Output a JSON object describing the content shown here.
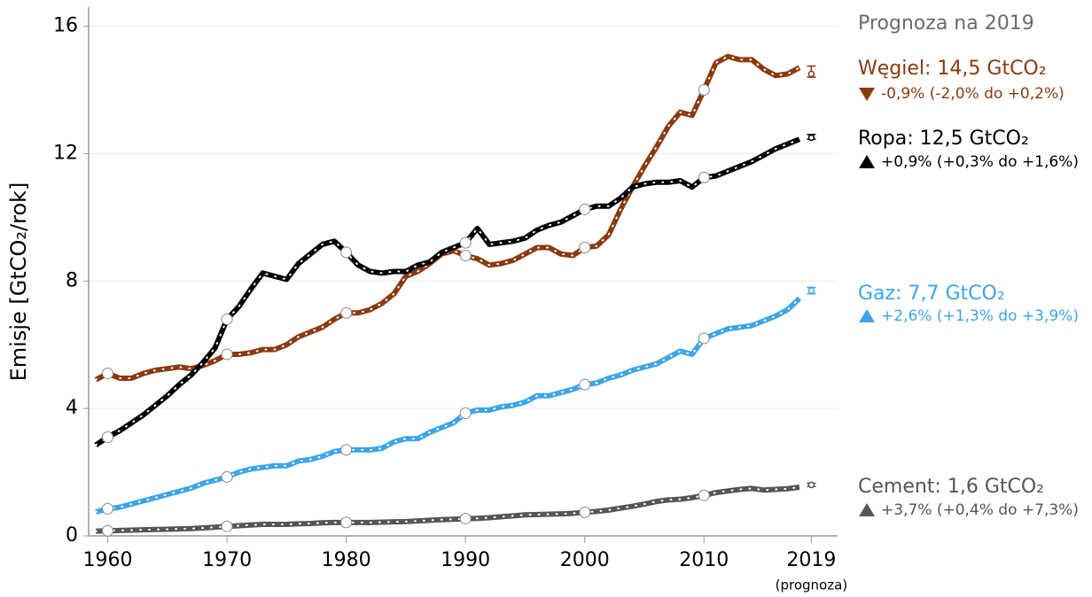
{
  "chart_data": {
    "type": "line",
    "ylabel": "Emisje [GtCO₂/rok]",
    "legend_title": "Prognoza na 2019",
    "x_note": "(prognoza)",
    "x": [
      1959,
      1960,
      1961,
      1962,
      1963,
      1964,
      1965,
      1966,
      1967,
      1968,
      1969,
      1970,
      1971,
      1972,
      1973,
      1974,
      1975,
      1976,
      1977,
      1978,
      1979,
      1980,
      1981,
      1982,
      1983,
      1984,
      1985,
      1986,
      1987,
      1988,
      1989,
      1990,
      1991,
      1992,
      1993,
      1994,
      1995,
      1996,
      1997,
      1998,
      1999,
      2000,
      2001,
      2002,
      2003,
      2004,
      2005,
      2006,
      2007,
      2008,
      2009,
      2010,
      2011,
      2012,
      2013,
      2014,
      2015,
      2016,
      2017,
      2018
    ],
    "xlim": [
      1958.4,
      2021.2
    ],
    "ylim": [
      0,
      16.6
    ],
    "xticks": [
      1960,
      1970,
      1980,
      1990,
      2000,
      2010,
      2019
    ],
    "yticks": [
      0,
      4,
      8,
      12,
      16
    ],
    "grid": true,
    "forecast_x": 2019,
    "series": [
      {
        "name": "Węgiel: 14,5 GtCO₂",
        "change": "-0,9% (-2,0% do +0,2%)",
        "trend": "down",
        "color": "#8b3a0f",
        "values": [
          4.9,
          5.1,
          4.95,
          4.95,
          5.1,
          5.2,
          5.25,
          5.3,
          5.25,
          5.35,
          5.5,
          5.7,
          5.7,
          5.75,
          5.85,
          5.85,
          6.0,
          6.25,
          6.4,
          6.55,
          6.8,
          7.0,
          7.0,
          7.1,
          7.3,
          7.6,
          8.15,
          8.3,
          8.55,
          8.85,
          8.95,
          8.8,
          8.7,
          8.5,
          8.55,
          8.65,
          8.85,
          9.05,
          9.05,
          8.85,
          8.8,
          9.05,
          9.1,
          9.45,
          10.25,
          10.95,
          11.6,
          12.2,
          12.85,
          13.3,
          13.2,
          14.0,
          14.85,
          15.05,
          14.95,
          14.95,
          14.65,
          14.45,
          14.5,
          14.7
        ],
        "forecast": 14.5,
        "forecast_range": [
          14.4,
          14.75
        ]
      },
      {
        "name": "Ropa: 12,5 GtCO₂",
        "change": "+0,9% (+0,3% do +1,6%)",
        "trend": "up",
        "color": "#000000",
        "values": [
          2.85,
          3.1,
          3.3,
          3.55,
          3.8,
          4.1,
          4.4,
          4.75,
          5.05,
          5.45,
          5.9,
          6.8,
          7.2,
          7.75,
          8.25,
          8.15,
          8.05,
          8.55,
          8.85,
          9.15,
          9.25,
          8.9,
          8.5,
          8.3,
          8.25,
          8.3,
          8.3,
          8.5,
          8.6,
          8.9,
          9.05,
          9.2,
          9.65,
          9.15,
          9.2,
          9.25,
          9.35,
          9.6,
          9.75,
          9.85,
          10.05,
          10.25,
          10.35,
          10.35,
          10.6,
          10.95,
          11.05,
          11.1,
          11.1,
          11.15,
          10.95,
          11.25,
          11.3,
          11.45,
          11.6,
          11.75,
          11.95,
          12.15,
          12.3,
          12.45
        ],
        "forecast": 12.5,
        "forecast_range": [
          12.45,
          12.6
        ]
      },
      {
        "name": "Gaz: 7,7 GtCO₂",
        "change": "+2,6% (+1,3% do +3,9%)",
        "trend": "up",
        "color": "#3da5e8",
        "values": [
          0.75,
          0.85,
          0.9,
          1.0,
          1.1,
          1.2,
          1.3,
          1.4,
          1.5,
          1.65,
          1.75,
          1.85,
          2.0,
          2.1,
          2.15,
          2.2,
          2.2,
          2.35,
          2.4,
          2.5,
          2.65,
          2.7,
          2.7,
          2.7,
          2.75,
          2.95,
          3.05,
          3.05,
          3.25,
          3.4,
          3.55,
          3.85,
          3.95,
          3.95,
          4.05,
          4.1,
          4.2,
          4.4,
          4.4,
          4.5,
          4.6,
          4.75,
          4.8,
          4.95,
          5.05,
          5.2,
          5.3,
          5.4,
          5.6,
          5.8,
          5.7,
          6.2,
          6.35,
          6.5,
          6.55,
          6.6,
          6.75,
          6.9,
          7.1,
          7.45
        ],
        "forecast": 7.7,
        "forecast_range": [
          7.6,
          7.8
        ]
      },
      {
        "name": "Cement: 1,6 GtCO₂",
        "change": "+3,7% (+0,4% do +7,3%)",
        "trend": "up",
        "color": "#555555",
        "values": [
          0.15,
          0.16,
          0.17,
          0.18,
          0.19,
          0.2,
          0.21,
          0.22,
          0.23,
          0.25,
          0.27,
          0.3,
          0.32,
          0.34,
          0.36,
          0.36,
          0.36,
          0.38,
          0.39,
          0.41,
          0.42,
          0.42,
          0.42,
          0.42,
          0.43,
          0.44,
          0.45,
          0.47,
          0.49,
          0.51,
          0.52,
          0.54,
          0.55,
          0.57,
          0.6,
          0.63,
          0.66,
          0.67,
          0.68,
          0.69,
          0.71,
          0.74,
          0.77,
          0.81,
          0.87,
          0.93,
          1.0,
          1.08,
          1.13,
          1.15,
          1.2,
          1.27,
          1.36,
          1.41,
          1.46,
          1.49,
          1.44,
          1.46,
          1.48,
          1.53
        ],
        "forecast": 1.6,
        "forecast_range": [
          1.55,
          1.65
        ]
      }
    ]
  }
}
